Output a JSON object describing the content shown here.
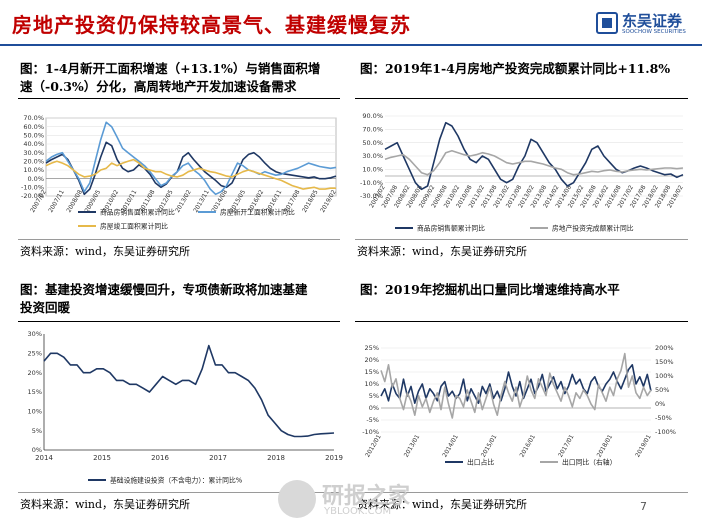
{
  "header": {
    "title": "房地产投资仍保持较高景气、基建缓慢复苏",
    "logo_cn": "东吴证券",
    "logo_en": "SOOCHOW SECURITIES"
  },
  "panels": {
    "tl": {
      "caption_l1": "图：1-4月新开工面积增速（+13.1%）与销售面积增",
      "caption_l2": "速（-0.3%）分化，高周转地产开发加速设备需求",
      "source": "资料来源：wind，东吴证券研究所"
    },
    "tr": {
      "caption": "图：2019年1-4月房地产投资完成额累计同比+11.8%",
      "source": "资料来源：wind，东吴证券研究所"
    },
    "bl": {
      "caption_l1": "图：基建投资增速缓慢回升，专项债新政将加速基建",
      "caption_l2": "投资回暖",
      "source": "资料来源：wind，东吴证券研究所"
    },
    "br": {
      "caption": "图：2019年挖掘机出口量同比增速维持高水平",
      "source": "资料来源：wind，东吴证券研究所"
    }
  },
  "page_number": "7",
  "watermark": {
    "cn": "研报之家",
    "en": "YBLOOK.COM"
  },
  "chart_data": [
    {
      "id": "tl",
      "type": "line",
      "ylim": [
        -20,
        70
      ],
      "yticks": [
        "70.0%",
        "60.0%",
        "50.0%",
        "40.0%",
        "30.0%",
        "20.0%",
        "10.0%",
        "0.0%",
        "-10.0%",
        "-20.0%"
      ],
      "xticks": [
        "2007/02",
        "2007/11",
        "2008/08",
        "2009/05",
        "2010/02",
        "2010/11",
        "2011/08",
        "2012/05",
        "2013/02",
        "2013/11",
        "2014/08",
        "2015/05",
        "2016/02",
        "2016/11",
        "2017/08",
        "2018/05",
        "2019/02"
      ],
      "series": [
        {
          "name": "商品房销售面积累计同比",
          "color": "#1f3864",
          "values": [
            18,
            22,
            25,
            28,
            22,
            10,
            -2,
            -18,
            -12,
            5,
            25,
            42,
            38,
            22,
            12,
            8,
            10,
            16,
            12,
            5,
            -5,
            -10,
            -6,
            2,
            8,
            25,
            30,
            22,
            15,
            8,
            3,
            -2,
            -8,
            -10,
            -5,
            8,
            22,
            28,
            30,
            25,
            18,
            12,
            8,
            6,
            5,
            4,
            3,
            2,
            1,
            2,
            0,
            0,
            1,
            3
          ]
        },
        {
          "name": "房屋新开工面积累计同比",
          "color": "#5b9bd5",
          "values": [
            20,
            25,
            28,
            30,
            20,
            10,
            0,
            -15,
            -5,
            20,
            45,
            65,
            60,
            48,
            35,
            30,
            25,
            20,
            15,
            8,
            0,
            -8,
            -5,
            3,
            8,
            15,
            18,
            10,
            5,
            -2,
            -12,
            -18,
            -15,
            -8,
            5,
            18,
            15,
            10,
            8,
            5,
            8,
            6,
            4,
            5,
            8,
            10,
            12,
            15,
            18,
            16,
            14,
            13,
            12,
            13
          ]
        },
        {
          "name": "房屋竣工面积累计同比",
          "color": "#e6b94a",
          "values": [
            15,
            18,
            20,
            18,
            15,
            10,
            5,
            2,
            3,
            5,
            10,
            12,
            18,
            15,
            18,
            20,
            22,
            18,
            12,
            10,
            8,
            8,
            5,
            3,
            2,
            4,
            8,
            10,
            12,
            10,
            8,
            7,
            5,
            3,
            2,
            5,
            8,
            10,
            8,
            6,
            4,
            2,
            0,
            -2,
            -5,
            -8,
            -10,
            -12,
            -11,
            -10,
            -12,
            -12,
            -11,
            -11
          ]
        }
      ]
    },
    {
      "id": "tr",
      "type": "line",
      "ylim": [
        -30,
        90
      ],
      "yticks": [
        "90.0%",
        "70.0%",
        "50.0%",
        "30.0%",
        "10.0%",
        "-10.0%",
        "-30.0%"
      ],
      "xticks": [
        "2007/02",
        "2007/08",
        "2008/02",
        "2008/08",
        "2009/02",
        "2009/08",
        "2010/02",
        "2010/08",
        "2011/02",
        "2011/08",
        "2012/02",
        "2012/08",
        "2013/02",
        "2013/08",
        "2014/02",
        "2014/08",
        "2015/02",
        "2015/08",
        "2016/02",
        "2016/08",
        "2017/02",
        "2017/08",
        "2018/02",
        "2018/08",
        "2019/02"
      ],
      "series": [
        {
          "name": "商品房销售额累计同比",
          "color": "#1f3864",
          "values": [
            40,
            45,
            50,
            30,
            10,
            -10,
            -20,
            -15,
            20,
            55,
            80,
            75,
            60,
            40,
            25,
            20,
            30,
            25,
            10,
            -5,
            -10,
            -5,
            15,
            30,
            55,
            50,
            35,
            20,
            10,
            -5,
            -15,
            -10,
            5,
            20,
            40,
            45,
            30,
            20,
            10,
            5,
            8,
            12,
            15,
            12,
            8,
            5,
            2,
            3,
            -2,
            2
          ]
        },
        {
          "name": "房地产投资完成额累计同比",
          "color": "#a6a6a6",
          "values": [
            25,
            28,
            30,
            32,
            25,
            15,
            5,
            2,
            8,
            20,
            35,
            38,
            35,
            32,
            30,
            32,
            35,
            33,
            30,
            25,
            20,
            18,
            20,
            22,
            22,
            20,
            18,
            15,
            12,
            10,
            5,
            2,
            3,
            5,
            7,
            6,
            8,
            9,
            7,
            6,
            8,
            9,
            10,
            9,
            10,
            11,
            12,
            12,
            11,
            12
          ]
        }
      ]
    },
    {
      "id": "bl",
      "type": "line",
      "ylim": [
        0,
        30
      ],
      "yticks": [
        "30%",
        "25%",
        "20%",
        "15%",
        "10%",
        "5%",
        "0%"
      ],
      "xticks": [
        "2014",
        "2015",
        "2016",
        "2017",
        "2018",
        "2019"
      ],
      "series": [
        {
          "name": "基础设施建设投资（不含电力）：累计同比%",
          "color": "#1f3864",
          "values": [
            23,
            25,
            25,
            24,
            22,
            22,
            20,
            20,
            21,
            21,
            20,
            18,
            18,
            17,
            17,
            16,
            15,
            17,
            19,
            18,
            17,
            18,
            18,
            17,
            21,
            27,
            22,
            22,
            20,
            20,
            19,
            18,
            16,
            13,
            9,
            7,
            5,
            4,
            3.5,
            3.5,
            3.6,
            4,
            4.2,
            4.3,
            4.4
          ]
        }
      ]
    },
    {
      "id": "br",
      "type": "line",
      "ylim": [
        -10,
        25
      ],
      "ylim_right": [
        -100,
        200
      ],
      "yticks": [
        "25%",
        "20%",
        "15%",
        "10%",
        "5%",
        "0%",
        "-5%",
        "-10%"
      ],
      "yticks_right": [
        "200%",
        "150%",
        "100%",
        "50%",
        "0%",
        "-50%",
        "-100%"
      ],
      "xticks": [
        "2012/01",
        "2013/01",
        "2014/01",
        "2015/01",
        "2016/01",
        "2017/01",
        "2018/01",
        "2019/01"
      ],
      "series": [
        {
          "name": "出口占比",
          "color": "#1f3864",
          "axis": "left",
          "values": [
            5,
            8,
            3,
            10,
            6,
            4,
            12,
            5,
            9,
            2,
            7,
            10,
            4,
            8,
            6,
            3,
            9,
            11,
            5,
            7,
            4,
            6,
            12,
            3,
            8,
            5,
            2,
            9,
            6,
            10,
            4,
            7,
            3,
            8,
            15,
            9,
            5,
            11,
            4,
            8,
            12,
            6,
            9,
            14,
            7,
            10,
            13,
            8,
            11,
            6,
            9,
            14,
            10,
            12,
            8,
            6,
            11,
            13,
            9,
            7,
            10,
            12,
            15,
            11,
            8,
            12,
            16,
            18,
            10,
            13,
            9,
            14,
            7
          ]
        },
        {
          "name": "出口同比（右轴）",
          "color": "#a6a6a6",
          "axis": "right",
          "values": [
            120,
            80,
            140,
            60,
            90,
            20,
            -20,
            40,
            10,
            -40,
            30,
            -10,
            20,
            -30,
            10,
            40,
            -20,
            60,
            0,
            -50,
            30,
            20,
            -10,
            50,
            10,
            -30,
            40,
            -20,
            20,
            60,
            0,
            -40,
            30,
            80,
            40,
            10,
            60,
            -10,
            30,
            100,
            50,
            20,
            90,
            60,
            30,
            110,
            70,
            40,
            10,
            60,
            30,
            -10,
            40,
            20,
            50,
            30,
            0,
            -20,
            70,
            40,
            10,
            60,
            30,
            90,
            120,
            180,
            60,
            100,
            40,
            20,
            60,
            30,
            50
          ]
        }
      ]
    }
  ]
}
